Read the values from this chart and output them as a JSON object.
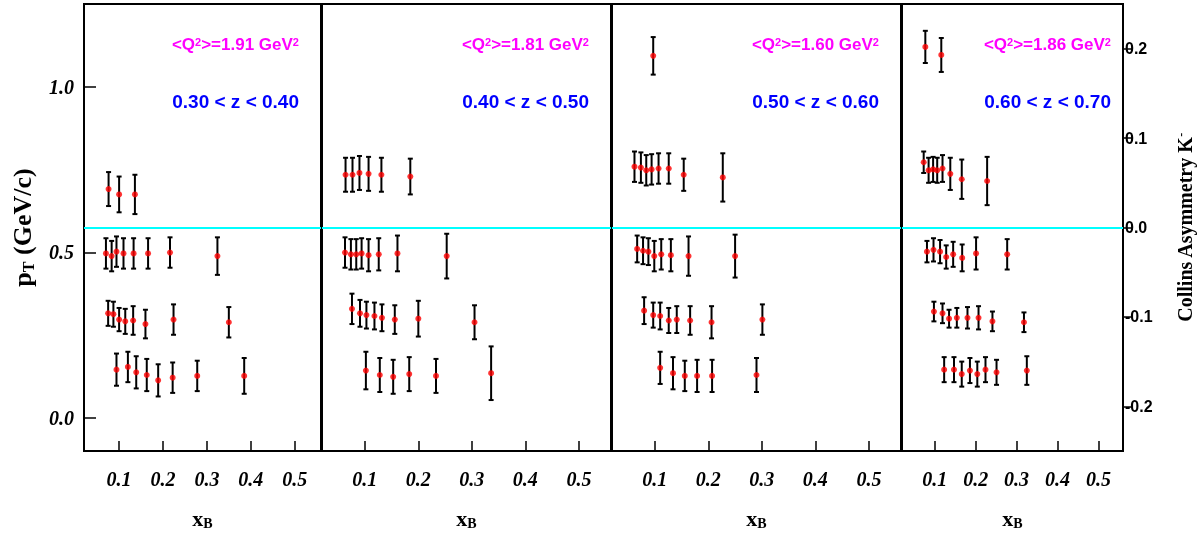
{
  "chart_data": [
    {
      "type": "scatter",
      "xlabel": "x$_{B}$",
      "ylabel": "p$_{T}$ (GeV/c)",
      "annotations": [
        "<Q$^{2}$>=1.91 GeV$^{2}$",
        "0.30 < z < 0.40"
      ],
      "xlim": [
        0.02,
        0.56
      ],
      "xticks": [
        0.1,
        0.2,
        0.3,
        0.4,
        0.5
      ],
      "ylim": [
        -0.1,
        1.25
      ],
      "yticks": [
        {
          "value": 0,
          "label": "0.0"
        },
        {
          "value": 0.5,
          "label": "0.5"
        },
        {
          "value": 1,
          "label": "1.0"
        }
      ],
      "y2lim": [
        -0.25,
        0.25
      ],
      "tick_labels": "xy",
      "marker": "circle",
      "ref_lines": [
        {
          "axis": "y2",
          "value": 0,
          "color": "#00ffff"
        }
      ],
      "series": [
        {
          "color": "#ff0000",
          "axis": "y2",
          "x": [
            0.076,
            0.1,
            0.136,
            0.07,
            0.083,
            0.094,
            0.11,
            0.133,
            0.166,
            0.216,
            0.324,
            0.075,
            0.087,
            0.1,
            0.114,
            0.132,
            0.16,
            0.224,
            0.35,
            0.094,
            0.12,
            0.139,
            0.163,
            0.189,
            0.222,
            0.278,
            0.385
          ],
          "values": [
            0.043,
            0.037,
            0.037,
            -0.029,
            -0.032,
            -0.027,
            -0.029,
            -0.029,
            -0.029,
            -0.028,
            -0.032,
            -0.096,
            -0.097,
            -0.103,
            -0.105,
            -0.104,
            -0.108,
            -0.103,
            -0.106,
            -0.159,
            -0.156,
            -0.162,
            -0.165,
            -0.171,
            -0.168,
            -0.166,
            -0.166
          ],
          "errors": [
            0.019,
            0.02,
            0.022,
            0.017,
            0.017,
            0.017,
            0.017,
            0.017,
            0.017,
            0.017,
            0.021,
            0.014,
            0.014,
            0.013,
            0.014,
            0.016,
            0.016,
            0.017,
            0.017,
            0.018,
            0.017,
            0.018,
            0.018,
            0.018,
            0.017,
            0.017,
            0.02
          ]
        }
      ]
    },
    {
      "type": "scatter",
      "xlabel": "x$_{B}$",
      "annotations": [
        "<Q$^{2}$>=1.81 GeV$^{2}$",
        "0.40 < z < 0.50"
      ],
      "xlim": [
        0.02,
        0.56
      ],
      "xticks": [
        0.1,
        0.2,
        0.3,
        0.4,
        0.5
      ],
      "ylim": [
        -0.1,
        1.25
      ],
      "y2lim": [
        -0.25,
        0.25
      ],
      "tick_labels": "x",
      "marker": "circle",
      "ref_lines": [
        {
          "axis": "y2",
          "value": 0,
          "color": "#00ffff"
        }
      ],
      "series": [
        {
          "color": "#ff0000",
          "axis": "y2",
          "x": [
            0.064,
            0.077,
            0.09,
            0.107,
            0.131,
            0.185,
            0.063,
            0.074,
            0.084,
            0.094,
            0.107,
            0.126,
            0.161,
            0.253,
            0.076,
            0.091,
            0.103,
            0.118,
            0.132,
            0.156,
            0.2,
            0.305,
            0.102,
            0.128,
            0.153,
            0.183,
            0.233,
            0.336
          ],
          "values": [
            0.059,
            0.059,
            0.061,
            0.06,
            0.059,
            0.057,
            -0.028,
            -0.03,
            -0.03,
            -0.029,
            -0.031,
            -0.03,
            -0.029,
            -0.032,
            -0.091,
            -0.096,
            -0.098,
            -0.099,
            -0.101,
            -0.103,
            -0.102,
            -0.106,
            -0.16,
            -0.165,
            -0.167,
            -0.164,
            -0.166,
            -0.163
          ],
          "errors": [
            0.019,
            0.019,
            0.019,
            0.019,
            0.019,
            0.02,
            0.017,
            0.017,
            0.017,
            0.017,
            0.018,
            0.018,
            0.02,
            0.025,
            0.017,
            0.015,
            0.015,
            0.015,
            0.015,
            0.016,
            0.02,
            0.019,
            0.021,
            0.019,
            0.019,
            0.019,
            0.019,
            0.03
          ]
        }
      ]
    },
    {
      "type": "scatter",
      "xlabel": "x$_{B}$",
      "annotations": [
        "<Q$^{2}$>=1.60 GeV$^{2}$",
        "0.50 < z < 0.60"
      ],
      "xlim": [
        0.02,
        0.56
      ],
      "xticks": [
        0.1,
        0.2,
        0.3,
        0.4,
        0.5
      ],
      "ylim": [
        -0.1,
        1.25
      ],
      "y2lim": [
        -0.25,
        0.25
      ],
      "tick_labels": "x",
      "marker": "circle",
      "ref_lines": [
        {
          "axis": "y2",
          "value": 0,
          "color": "#00ffff"
        }
      ],
      "series": [
        {
          "color": "#ff0000",
          "axis": "y2",
          "x": [
            0.097,
            0.062,
            0.074,
            0.084,
            0.094,
            0.107,
            0.126,
            0.154,
            0.227,
            0.067,
            0.078,
            0.088,
            0.099,
            0.112,
            0.13,
            0.163,
            0.25,
            0.08,
            0.097,
            0.11,
            0.126,
            0.141,
            0.166,
            0.206,
            0.301,
            0.11,
            0.134,
            0.156,
            0.179,
            0.207,
            0.29
          ],
          "values": [
            0.192,
            0.068,
            0.067,
            0.064,
            0.065,
            0.066,
            0.066,
            0.059,
            0.056,
            -0.024,
            -0.026,
            -0.027,
            -0.032,
            -0.03,
            -0.031,
            -0.032,
            -0.032,
            -0.093,
            -0.098,
            -0.099,
            -0.104,
            -0.103,
            -0.104,
            -0.106,
            -0.103,
            -0.157,
            -0.163,
            -0.166,
            -0.166,
            -0.166,
            -0.165
          ],
          "errors": [
            0.021,
            0.017,
            0.017,
            0.017,
            0.017,
            0.017,
            0.017,
            0.018,
            0.027,
            0.015,
            0.015,
            0.015,
            0.017,
            0.017,
            0.018,
            0.022,
            0.024,
            0.015,
            0.014,
            0.015,
            0.014,
            0.015,
            0.016,
            0.018,
            0.017,
            0.018,
            0.018,
            0.017,
            0.018,
            0.018,
            0.019
          ]
        }
      ]
    },
    {
      "type": "scatter",
      "xlabel": "x$_{B}$",
      "y2label": "Collins Asymmetry K$^{-}$",
      "annotations": [
        "<Q$^{2}$>=1.86 GeV$^{2}$",
        "0.60 < z < 0.70"
      ],
      "xlim": [
        0.02,
        0.56
      ],
      "xticks": [
        0.1,
        0.2,
        0.3,
        0.4,
        0.5
      ],
      "ylim": [
        -0.1,
        1.25
      ],
      "y2lim": [
        -0.25,
        0.25
      ],
      "y2ticks": [
        -0.2,
        -0.1,
        {
          "value": 0,
          "label": "0.0"
        },
        0.1,
        0.2
      ],
      "tick_labels": "xy2",
      "marker": "circle",
      "ref_lines": [
        {
          "axis": "y2",
          "value": 0,
          "color": "#00ffff"
        }
      ],
      "series": [
        {
          "color": "#ff0000",
          "axis": "y2",
          "x": [
            0.077,
            0.116,
            0.073,
            0.085,
            0.096,
            0.106,
            0.119,
            0.138,
            0.166,
            0.228,
            0.081,
            0.097,
            0.113,
            0.128,
            0.145,
            0.167,
            0.201,
            0.277,
            0.098,
            0.119,
            0.135,
            0.154,
            0.18,
            0.207,
            0.241,
            0.318,
            0.123,
            0.147,
            0.166,
            0.186,
            0.204,
            0.224,
            0.251,
            0.325
          ],
          "values": [
            0.202,
            0.193,
            0.073,
            0.064,
            0.065,
            0.064,
            0.066,
            0.06,
            0.054,
            0.052,
            -0.027,
            -0.025,
            -0.027,
            -0.033,
            -0.03,
            -0.034,
            -0.029,
            -0.03,
            -0.094,
            -0.096,
            -0.102,
            -0.101,
            -0.101,
            -0.101,
            -0.105,
            -0.106,
            -0.159,
            -0.159,
            -0.164,
            -0.16,
            -0.164,
            -0.159,
            -0.162,
            -0.16
          ],
          "errors": [
            0.018,
            0.019,
            0.012,
            0.014,
            0.014,
            0.014,
            0.015,
            0.018,
            0.022,
            0.027,
            0.012,
            0.013,
            0.013,
            0.013,
            0.014,
            0.015,
            0.018,
            0.017,
            0.011,
            0.011,
            0.01,
            0.011,
            0.012,
            0.013,
            0.011,
            0.011,
            0.014,
            0.014,
            0.014,
            0.014,
            0.014,
            0.014,
            0.014,
            0.016
          ]
        }
      ]
    }
  ]
}
